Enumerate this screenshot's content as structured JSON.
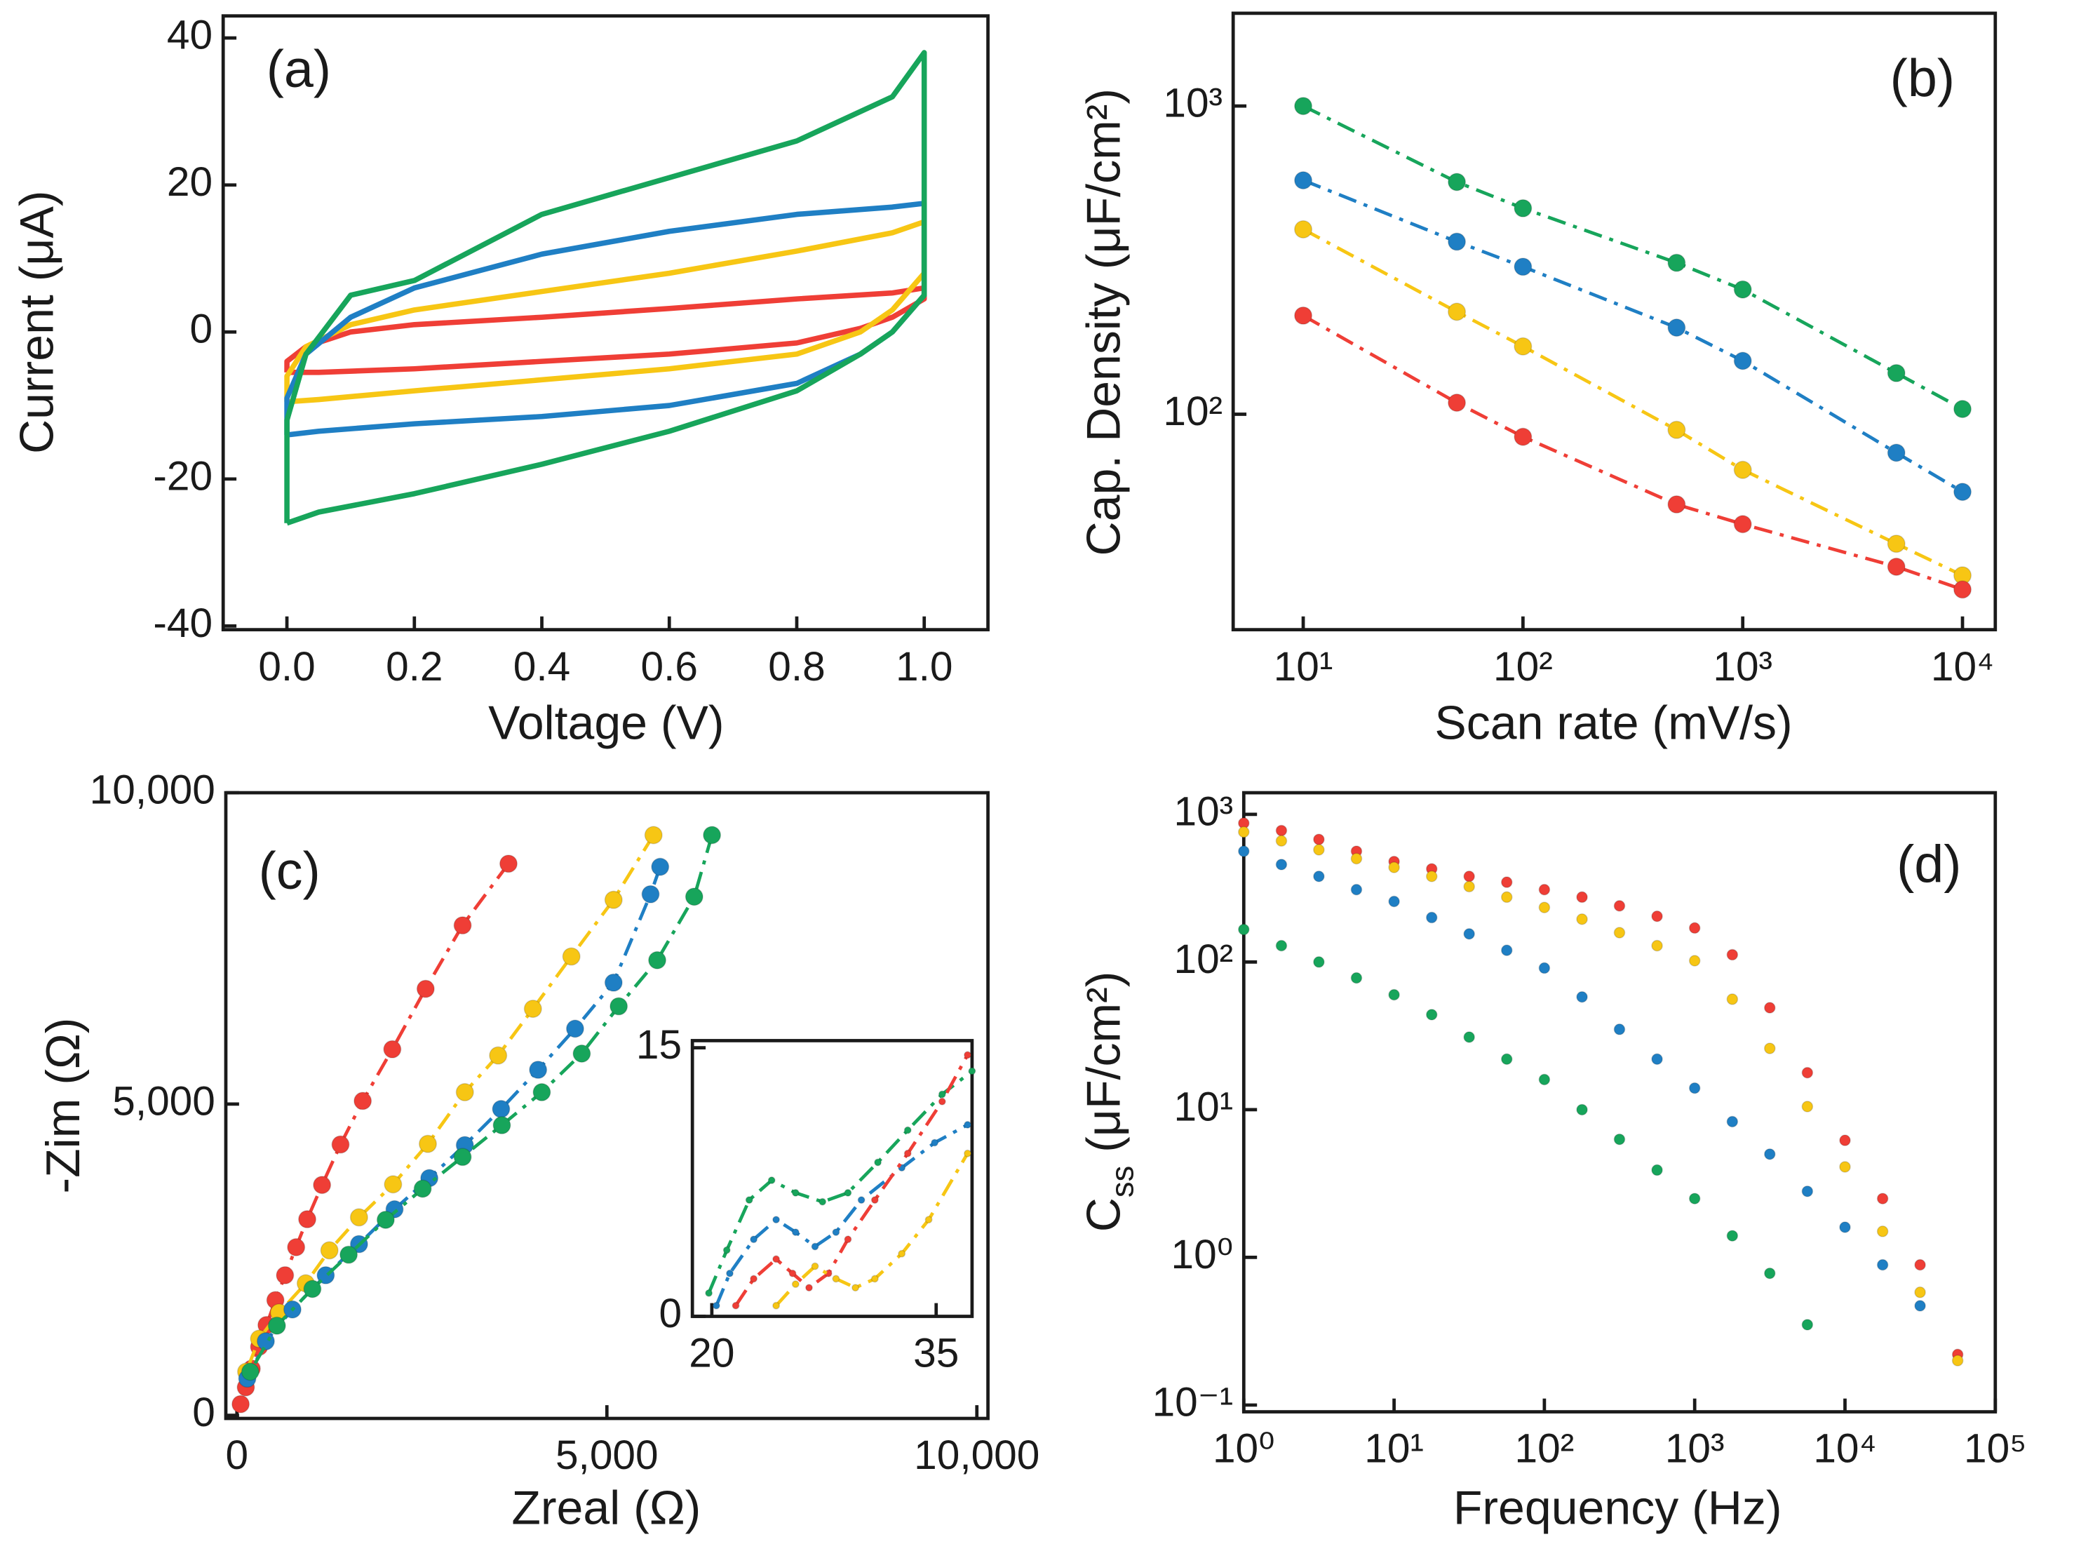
{
  "chart_data": [
    {
      "type": "line",
      "label": "(a)",
      "xlabel": "Voltage (V)",
      "ylabel": "Current (μA)",
      "xlim": [
        -0.1,
        1.1
      ],
      "ylim": [
        -40.5,
        43
      ],
      "xticks": [
        {
          "value": 0,
          "label": "0.0"
        },
        0.2,
        0.4,
        0.6,
        0.8,
        {
          "value": 1,
          "label": "1.0"
        }
      ],
      "yticks": [
        -40,
        -20,
        0,
        20,
        40
      ],
      "series": [
        {
          "color": "#ef3e36",
          "x": [
            0,
            0,
            0.03,
            0.1,
            0.2,
            0.4,
            0.6,
            0.8,
            0.95,
            1,
            1,
            0.95,
            0.9,
            0.8,
            0.6,
            0.4,
            0.2,
            0.05,
            0
          ],
          "values": [
            -5.5,
            -4,
            -2,
            0,
            1,
            2,
            3.2,
            4.5,
            5.3,
            6,
            4.5,
            2,
            0.5,
            -1.5,
            -3,
            -4,
            -5,
            -5.5,
            -5.5
          ]
        },
        {
          "color": "#f7c614",
          "x": [
            0,
            0,
            0.03,
            0.1,
            0.2,
            0.4,
            0.6,
            0.8,
            0.95,
            1,
            1,
            0.95,
            0.9,
            0.8,
            0.6,
            0.4,
            0.2,
            0.05,
            0
          ],
          "values": [
            -9.5,
            -6,
            -2,
            1,
            3,
            5.5,
            8,
            11,
            13.5,
            15,
            8,
            3,
            0,
            -3,
            -5,
            -6.5,
            -8,
            -9.2,
            -9.5
          ]
        },
        {
          "color": "#1f7fc4",
          "x": [
            0,
            0,
            0.03,
            0.1,
            0.2,
            0.4,
            0.6,
            0.8,
            0.95,
            1,
            1,
            0.95,
            0.9,
            0.8,
            0.6,
            0.4,
            0.2,
            0.05,
            0
          ],
          "values": [
            -14,
            -9,
            -3,
            2,
            6,
            10.6,
            13.7,
            16,
            17,
            17.5,
            5,
            0,
            -3,
            -7,
            -10,
            -11.5,
            -12.5,
            -13.5,
            -14
          ]
        },
        {
          "color": "#17a55b",
          "x": [
            0,
            0,
            0.03,
            0.1,
            0.2,
            0.4,
            0.6,
            0.8,
            0.95,
            1,
            1,
            0.95,
            0.9,
            0.8,
            0.6,
            0.4,
            0.2,
            0.05,
            0
          ],
          "values": [
            -26,
            -12,
            -3,
            5,
            7,
            16,
            21,
            26,
            32,
            38,
            5,
            0,
            -3,
            -8,
            -13.5,
            -18,
            -22,
            -24.5,
            -26
          ]
        }
      ]
    },
    {
      "type": "line",
      "label": "(b)",
      "xlabel": "Scan rate (mV/s)",
      "ylabel": "Cap. Density (μF/cm²)",
      "xlog": true,
      "ylog": true,
      "markers": true,
      "line_style": "dashdot",
      "xlim": [
        4.8,
        14100
      ],
      "ylim": [
        20,
        2000
      ],
      "xticks": [
        {
          "value": 10,
          "label": "10¹"
        },
        {
          "value": 100,
          "label": "10²"
        },
        {
          "value": 1000,
          "label": "10³"
        },
        {
          "value": 10000,
          "label": "10⁴"
        }
      ],
      "yticks": [
        {
          "value": 100,
          "label": "10²"
        },
        {
          "value": 1000,
          "label": "10³"
        }
      ],
      "x": [
        10,
        50,
        100,
        500,
        1000,
        5000,
        10000
      ],
      "series": [
        {
          "color": "#17a55b",
          "values": [
            1000,
            567,
            466,
            310,
            254,
            136,
            104
          ]
        },
        {
          "color": "#1f7fc4",
          "values": [
            574,
            363,
            301,
            191,
            149,
            75,
            56
          ]
        },
        {
          "color": "#f7c614",
          "values": [
            398,
            215,
            166,
            89,
            66,
            38,
            30
          ]
        },
        {
          "color": "#ef3e36",
          "values": [
            209,
            109,
            84.5,
            51,
            44,
            32,
            27
          ]
        }
      ]
    },
    {
      "type": "line",
      "label": "(c)",
      "xlabel": "Zreal (Ω)",
      "ylabel": "-Zim (Ω)",
      "markers": true,
      "line_style": "dashdot",
      "xlim": [
        -150,
        10150
      ],
      "ylim": [
        -50,
        10000
      ],
      "xticks": [
        0,
        {
          "value": 5000,
          "label": "5,000"
        },
        {
          "value": 10000,
          "label": "10,000"
        }
      ],
      "yticks": [
        0,
        {
          "value": 5000,
          "label": "5,000"
        },
        {
          "value": 10000,
          "label": "10,000"
        }
      ],
      "series": [
        {
          "color": "#ef3e36",
          "x": [
            3670,
            3050,
            2550,
            2100,
            1700,
            1400,
            1150,
            950,
            800,
            650,
            520,
            400,
            300,
            200,
            120,
            50
          ],
          "values": [
            8860,
            7870,
            6850,
            5880,
            5050,
            4350,
            3700,
            3150,
            2700,
            2250,
            1850,
            1450,
            1100,
            750,
            450,
            180
          ]
        },
        {
          "color": "#f7c614",
          "x": [
            5630,
            5090,
            4520,
            4000,
            3530,
            3080,
            2580,
            2110,
            1650,
            1250,
            930,
            570,
            300,
            125
          ],
          "values": [
            9320,
            8280,
            7370,
            6530,
            5780,
            5190,
            4360,
            3710,
            3180,
            2650,
            2120,
            1650,
            1230,
            700
          ]
        },
        {
          "color": "#1f7fc4",
          "x": [
            5720,
            5590,
            5090,
            4570,
            4070,
            3570,
            3080,
            2600,
            2130,
            1650,
            1200,
            750,
            390,
            140
          ],
          "values": [
            8810,
            8370,
            6950,
            6210,
            5550,
            4920,
            4340,
            3810,
            3310,
            2750,
            2250,
            1700,
            1190,
            590
          ]
        },
        {
          "color": "#17a55b",
          "x": [
            6420,
            6180,
            5680,
            5160,
            4660,
            4120,
            3580,
            3050,
            2510,
            2010,
            1510,
            1020,
            540,
            180
          ],
          "values": [
            9320,
            8330,
            7310,
            6570,
            5810,
            5190,
            4660,
            4150,
            3640,
            3140,
            2580,
            2030,
            1440,
            700
          ]
        }
      ]
    },
    {
      "type": "line",
      "markers": true,
      "line_style": "dashdot",
      "xlim": [
        18.7,
        37.4
      ],
      "ylim": [
        0,
        15.4
      ],
      "xticks": [
        20,
        35
      ],
      "yticks": [
        0,
        15
      ],
      "series": [
        {
          "color": "#17a55b",
          "x": [
            19.8,
            21,
            22.5,
            24,
            25.6,
            27.4,
            29.1,
            31.1,
            33.1,
            35.4,
            37.4
          ],
          "values": [
            1.3,
            3.7,
            6.5,
            7.6,
            6.9,
            6.4,
            6.9,
            8.6,
            10.4,
            12.4,
            13.7
          ]
        },
        {
          "color": "#1f7fc4",
          "x": [
            20.3,
            21.2,
            22.8,
            24.3,
            25.6,
            26.9,
            28.3,
            30,
            32.7,
            34.9,
            37.1
          ],
          "values": [
            0.6,
            2.4,
            4.3,
            5.4,
            4.7,
            3.9,
            4.7,
            6.5,
            8.3,
            9.7,
            10.7
          ]
        },
        {
          "color": "#ef3e36",
          "x": [
            21.6,
            22.8,
            24.3,
            25.4,
            26.5,
            27.8,
            29.1,
            30.9,
            33.1,
            35.4,
            37.1
          ],
          "values": [
            0.6,
            2.1,
            3.2,
            2.4,
            1.6,
            2.4,
            4.3,
            6.5,
            9.1,
            12,
            14.6
          ]
        },
        {
          "color": "#f7c614",
          "x": [
            24.3,
            25.6,
            26.9,
            28.3,
            29.6,
            30.9,
            32.7,
            34.5,
            37.1
          ],
          "values": [
            0.6,
            1.8,
            2.8,
            2.1,
            1.6,
            2.1,
            3.5,
            5.4,
            9.1
          ]
        }
      ]
    },
    {
      "type": "scatter",
      "label": "(d)",
      "xlabel": "Frequency (Hz)",
      "ylabel": [
        "C",
        "ss",
        " (μF/cm²)"
      ],
      "xlog": true,
      "ylog": true,
      "xlim": [
        1,
        100000
      ],
      "ylim": [
        0.09,
        1400
      ],
      "xticks": [
        {
          "value": 1,
          "label": "10⁰"
        },
        {
          "value": 10,
          "label": "10¹"
        },
        {
          "value": 100,
          "label": "10²"
        },
        {
          "value": 1000,
          "label": "10³"
        },
        {
          "value": 10000,
          "label": "10⁴"
        },
        {
          "value": 100000,
          "label": "10⁵"
        }
      ],
      "yticks": [
        {
          "value": 0.1,
          "label": "10⁻¹"
        },
        {
          "value": 1,
          "label": "10⁰"
        },
        {
          "value": 10,
          "label": "10¹"
        },
        {
          "value": 100,
          "label": "10²"
        },
        {
          "value": 1000,
          "label": "10³"
        }
      ],
      "x": [
        1,
        1.78,
        3.16,
        5.62,
        10,
        17.8,
        31.6,
        56.2,
        100,
        178,
        316,
        562,
        1000,
        1780,
        3160,
        5620,
        10000,
        17800,
        31600,
        56200
      ],
      "series": [
        {
          "color": "#ef3e36",
          "values": [
            871,
            776,
            676,
            562,
            479,
            427,
            380,
            347,
            309,
            275,
            240,
            204,
            170,
            112,
            49,
            17.8,
            6.2,
            2.5,
            0.89,
            0.22
          ]
        },
        {
          "color": "#f7c614",
          "values": [
            759,
            661,
            575,
            501,
            437,
            380,
            324,
            275,
            234,
            195,
            158,
            129,
            102,
            56,
            26,
            10.5,
            4.1,
            1.5,
            0.58,
            0.2
          ]
        },
        {
          "color": "#1f7fc4",
          "values": [
            562,
            457,
            380,
            309,
            257,
            200,
            155,
            120,
            91,
            58,
            35,
            22,
            14,
            8.3,
            5,
            2.8,
            1.6,
            0.89,
            0.47,
            null
          ]
        },
        {
          "color": "#17a55b",
          "values": [
            166,
            129,
            100,
            78,
            60,
            44,
            31,
            22,
            16,
            10,
            6.3,
            3.9,
            2.5,
            1.4,
            0.78,
            0.35,
            null,
            null,
            null,
            null
          ]
        }
      ]
    }
  ]
}
